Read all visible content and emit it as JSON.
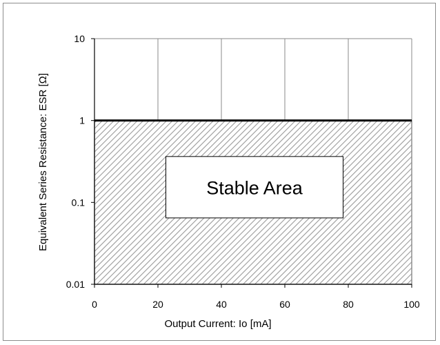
{
  "chart_data": {
    "type": "area",
    "title": "",
    "xlabel": "Output Current: Io [mA]",
    "ylabel": "Equivalent Series Resistance: ESR [Ω]",
    "x_ticks": [
      0,
      20,
      40,
      60,
      80,
      100
    ],
    "y_ticks": [
      0.01,
      0.1,
      1,
      10
    ],
    "y_tick_labels": [
      "0.01",
      "0.1",
      "1",
      "10"
    ],
    "x_tick_labels": [
      "0",
      "20",
      "40",
      "60",
      "80",
      "100"
    ],
    "xlim": [
      0,
      100
    ],
    "ylim": [
      0.01,
      10
    ],
    "y_scale": "log",
    "grid": "vertical",
    "regions": [
      {
        "label": "Stable Area",
        "x_range": [
          0,
          100
        ],
        "y_range": [
          0.01,
          1
        ],
        "fill": "hatched"
      }
    ],
    "boundary": {
      "x": [
        0,
        100
      ],
      "y": [
        1,
        1
      ]
    }
  },
  "colors": {
    "hatch": "#9a9a9a",
    "grid": "#888888",
    "axis": "#000000",
    "boundary": "#000000"
  }
}
